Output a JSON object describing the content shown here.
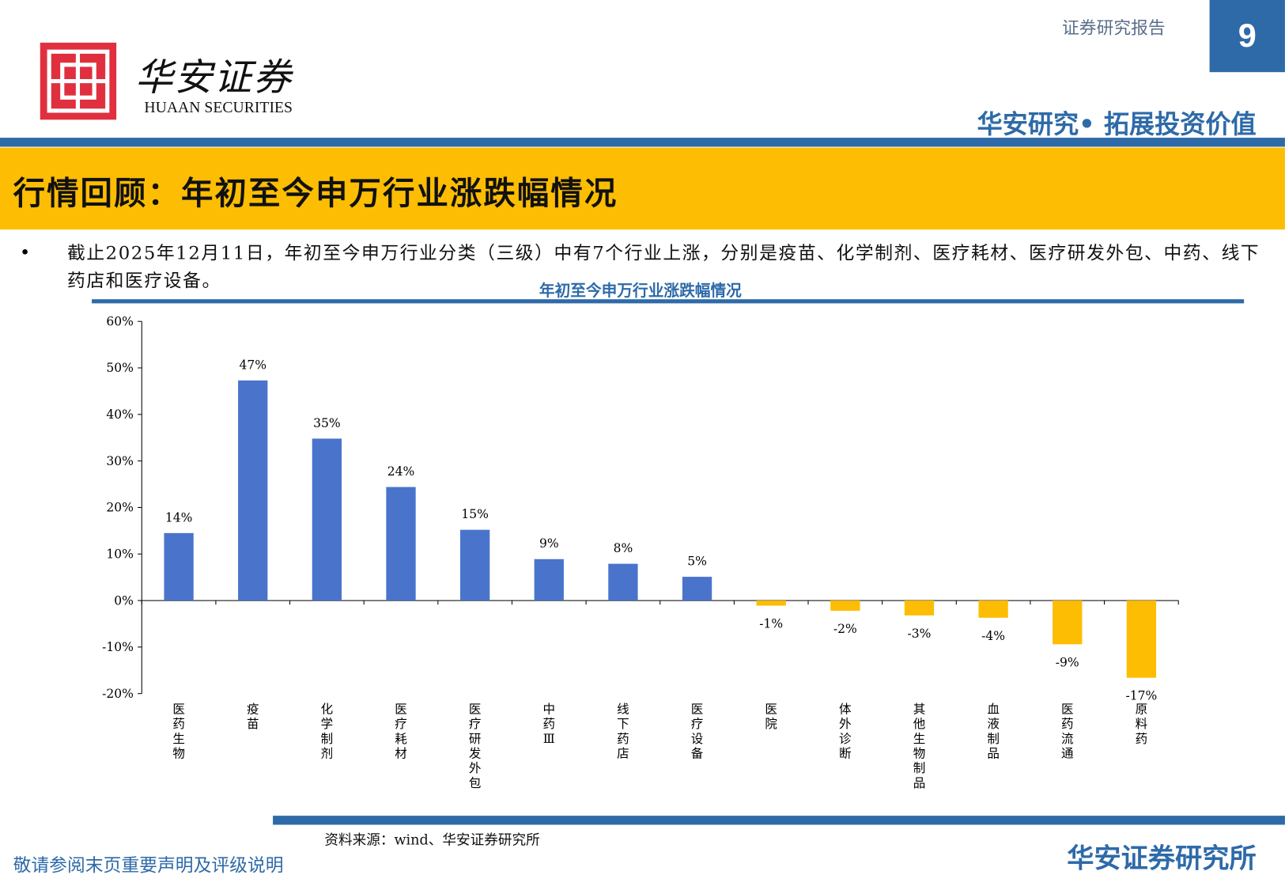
{
  "header": {
    "logo_cn": "华安证券",
    "logo_en": "HUAAN SECURITIES",
    "report_type": "证券研究报告",
    "page_number": "9",
    "slogan": "华安研究• 拓展投资价值"
  },
  "title": "行情回顾：年初至今申万行业涨跌幅情况",
  "bullet": "截止2025年12月11日，年初至今申万行业分类（三级）中有7个行业上涨，分别是疫苗、化学制剂、医疗耗材、医疗研发外包、中药、线下药店和医疗设备。",
  "chart_data": {
    "type": "bar",
    "title": "年初至今申万行业涨跌幅情况",
    "categories": [
      "医药生物",
      "疫苗",
      "化学制剂",
      "医疗耗材",
      "医疗研发外包",
      "中药Ⅲ",
      "线下药店",
      "医疗设备",
      "医院",
      "体外诊断",
      "其他生物制品",
      "血液制品",
      "医药流通",
      "原料药"
    ],
    "values": [
      14.5,
      47.3,
      34.8,
      24.4,
      15.2,
      8.9,
      7.9,
      5.1,
      -1.1,
      -2.2,
      -3.2,
      -3.7,
      -9.4,
      -16.6
    ],
    "data_labels": [
      "14%",
      "47%",
      "35%",
      "24%",
      "15%",
      "9%",
      "8%",
      "5%",
      "-1%",
      "-2%",
      "-3%",
      "-4%",
      "-9%",
      "-17%"
    ],
    "ylim": [
      -20,
      60
    ],
    "yticks": [
      "-20%",
      "-10%",
      "0%",
      "10%",
      "20%",
      "30%",
      "40%",
      "50%",
      "60%"
    ],
    "grid": false,
    "colors": {
      "positive": "#4a74cb",
      "negative": "#fdbd03"
    }
  },
  "footer": {
    "source": "资料来源：wind、华安证券研究所",
    "disclaimer": "敬请参阅末页重要声明及评级说明",
    "org": "华安证券研究所"
  }
}
